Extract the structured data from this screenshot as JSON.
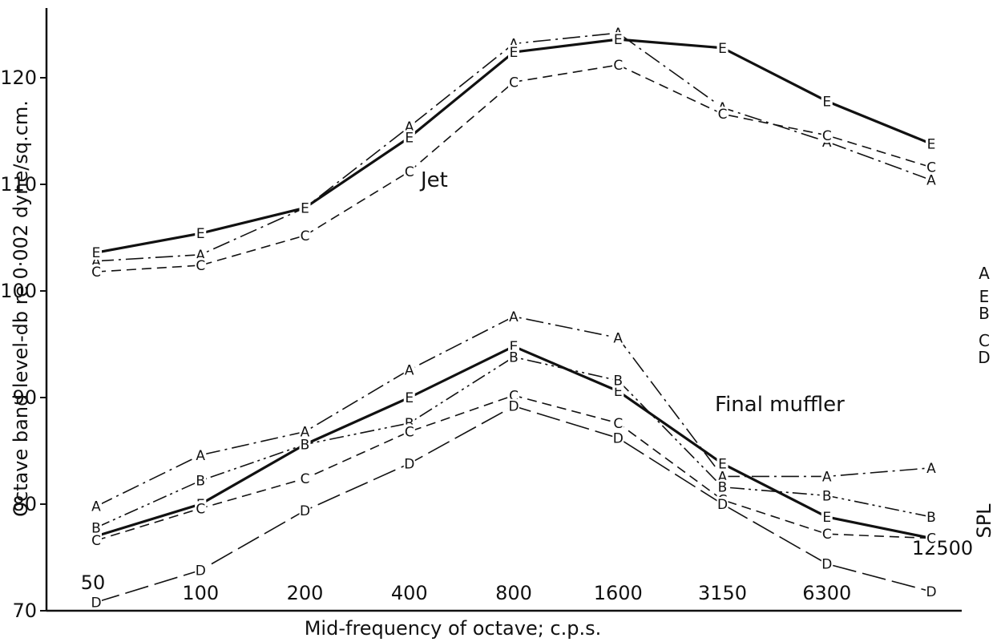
{
  "chart_data": {
    "type": "line",
    "xlabel": "Mid-frequency of octave; c.p.s.",
    "ylabel": "Octave band level-db re 0·002 dyne/sq.cm.",
    "side_label": "SPL",
    "categories": [
      "50",
      "100",
      "200",
      "400",
      "800",
      "1600",
      "3150",
      "6300",
      "12500"
    ],
    "ylim": [
      70,
      126
    ],
    "yticks": [
      70,
      80,
      90,
      100,
      110,
      120
    ],
    "grid": false,
    "annotations": [
      "Jet",
      "Final muffler"
    ],
    "groups": [
      {
        "name": "Jet",
        "series": [
          {
            "name": "A",
            "values": [
              102.8,
              103.4,
              107.8,
              115.4,
              123.2,
              124.2,
              117.2,
              114.0,
              110.4
            ]
          },
          {
            "name": "E",
            "values": [
              103.6,
              105.4,
              107.8,
              114.4,
              122.4,
              123.6,
              122.8,
              117.8,
              113.8
            ]
          },
          {
            "name": "C",
            "values": [
              101.8,
              102.4,
              105.2,
              111.2,
              119.6,
              121.2,
              116.6,
              114.6,
              111.6
            ]
          }
        ]
      },
      {
        "name": "Final muffler",
        "series": [
          {
            "name": "A",
            "values": [
              79.8,
              84.6,
              86.8,
              92.6,
              97.6,
              95.6,
              82.6,
              82.6,
              83.4
            ]
          },
          {
            "name": "E",
            "values": [
              77.0,
              80.0,
              85.6,
              90.0,
              94.8,
              90.6,
              83.8,
              78.8,
              76.8
            ]
          },
          {
            "name": "B",
            "values": [
              77.8,
              82.2,
              85.6,
              87.6,
              93.8,
              91.6,
              81.6,
              80.8,
              78.8
            ]
          },
          {
            "name": "C",
            "values": [
              76.6,
              79.6,
              82.4,
              86.8,
              90.2,
              87.6,
              80.4,
              77.2,
              76.8
            ]
          },
          {
            "name": "D",
            "values": [
              70.8,
              73.8,
              79.4,
              83.8,
              89.2,
              86.2,
              80.0,
              74.4,
              71.8
            ]
          }
        ]
      }
    ],
    "legend_letters": [
      "A",
      "E",
      "B",
      "C",
      "D"
    ]
  },
  "style": {
    "ink": "#111111",
    "background": "#ffffff",
    "dash_styles": {
      "A": "dash-dot",
      "E": "solid-heavy",
      "B": "dash-dot-dot",
      "C": "short-dash",
      "D": "long-dash"
    }
  }
}
